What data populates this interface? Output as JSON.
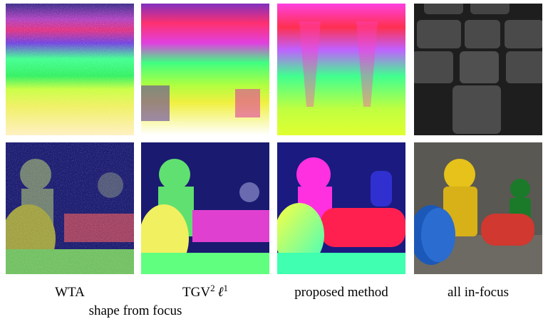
{
  "figure": {
    "captions": [
      "WTA",
      {
        "base": "TGV",
        "base_sup": "2",
        "norm": "ℓ",
        "norm_sup": "1"
      },
      "proposed method",
      "all in-focus"
    ],
    "group_caption": "shape from focus"
  }
}
